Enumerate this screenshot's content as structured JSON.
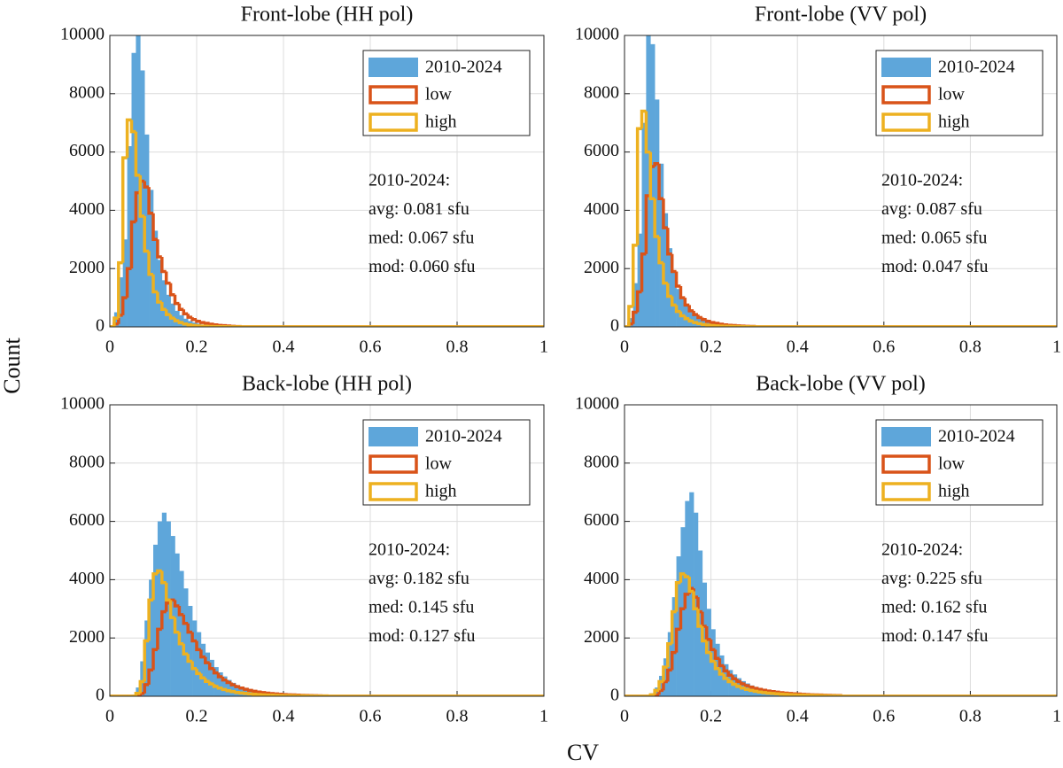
{
  "xlabel": "CV",
  "ylabel": "Count",
  "chart_data": [
    {
      "type": "histogram",
      "title": "Front-lobe (HH pol)",
      "xlim": [
        0,
        1
      ],
      "xticks": [
        0,
        0.2,
        0.4,
        0.6,
        0.8,
        1
      ],
      "ylim": [
        0,
        10000
      ],
      "yticks": [
        0,
        2000,
        4000,
        6000,
        8000,
        10000
      ],
      "grid": true,
      "legend": "upper right",
      "annotations": [
        "2010-2024:",
        "avg: 0.081 sfu",
        "med: 0.067 sfu",
        "mod: 0.060 sfu"
      ],
      "bins": [
        0,
        0.01,
        0.02,
        0.03,
        0.04,
        0.05,
        0.06,
        0.07,
        0.08,
        0.09,
        0.1,
        0.11,
        0.12,
        0.13,
        0.14,
        0.15,
        0.16,
        0.17,
        0.18,
        0.19,
        0.2,
        0.21,
        0.22,
        0.23,
        0.24,
        0.25,
        0.26,
        0.27,
        0.28,
        0.29,
        0.3
      ],
      "series": [
        {
          "name": "2010-2024",
          "color": "#5ea6da",
          "style": "filled",
          "values": [
            0,
            500,
            1700,
            3000,
            6200,
            9400,
            10300,
            8800,
            6600,
            4700,
            3300,
            2300,
            1600,
            1100,
            800,
            550,
            400,
            280,
            200,
            150,
            110,
            80,
            60,
            40,
            30,
            20,
            15,
            10,
            8,
            5
          ]
        },
        {
          "name": "low",
          "color": "#d95319",
          "style": "stairs",
          "values": [
            0,
            100,
            400,
            1000,
            2000,
            3600,
            4600,
            5000,
            4800,
            3900,
            3000,
            2400,
            1900,
            1500,
            1100,
            800,
            600,
            450,
            330,
            250,
            190,
            150,
            120,
            90,
            70,
            50,
            40,
            30,
            20,
            10
          ]
        },
        {
          "name": "high",
          "color": "#edb120",
          "style": "stairs",
          "values": [
            0,
            300,
            2200,
            5800,
            7100,
            6700,
            5200,
            3800,
            2600,
            1800,
            1200,
            850,
            600,
            420,
            300,
            210,
            150,
            100,
            70,
            50,
            35,
            25,
            20,
            15,
            10,
            8,
            6,
            4,
            3,
            2
          ]
        }
      ]
    },
    {
      "type": "histogram",
      "title": "Front-lobe (VV pol)",
      "xlim": [
        0,
        1
      ],
      "xticks": [
        0,
        0.2,
        0.4,
        0.6,
        0.8,
        1
      ],
      "ylim": [
        0,
        10000
      ],
      "yticks": [
        0,
        2000,
        4000,
        6000,
        8000,
        10000
      ],
      "grid": true,
      "legend": "upper right",
      "annotations": [
        "2010-2024:",
        "avg: 0.087 sfu",
        "med: 0.065 sfu",
        "mod: 0.047 sfu"
      ],
      "bins": [
        0,
        0.01,
        0.02,
        0.03,
        0.04,
        0.05,
        0.06,
        0.07,
        0.08,
        0.09,
        0.1,
        0.11,
        0.12,
        0.13,
        0.14,
        0.15,
        0.16,
        0.17,
        0.18,
        0.19,
        0.2,
        0.21,
        0.22,
        0.23,
        0.24,
        0.25,
        0.26,
        0.27,
        0.28,
        0.29,
        0.3
      ],
      "series": [
        {
          "name": "2010-2024",
          "color": "#5ea6da",
          "style": "filled",
          "values": [
            0,
            300,
            1500,
            3200,
            7000,
            10300,
            9700,
            7800,
            5600,
            3900,
            2700,
            1900,
            1300,
            950,
            700,
            500,
            380,
            280,
            210,
            160,
            120,
            90,
            70,
            55,
            45,
            35,
            25,
            20,
            15,
            10
          ]
        },
        {
          "name": "low",
          "color": "#d95319",
          "style": "stairs",
          "values": [
            0,
            100,
            500,
            1200,
            2500,
            4500,
            5500,
            5600,
            4400,
            3400,
            2500,
            1900,
            1400,
            1000,
            750,
            550,
            420,
            320,
            250,
            190,
            150,
            120,
            90,
            70,
            55,
            45,
            35,
            25,
            20,
            15
          ]
        },
        {
          "name": "high",
          "color": "#edb120",
          "style": "stairs",
          "values": [
            0,
            700,
            2800,
            6800,
            7400,
            6000,
            4400,
            3100,
            2200,
            1500,
            1050,
            750,
            530,
            380,
            280,
            200,
            150,
            110,
            80,
            60,
            45,
            35,
            28,
            22,
            18,
            14,
            10,
            8,
            6,
            4
          ]
        }
      ]
    },
    {
      "type": "histogram",
      "title": "Back-lobe (HH pol)",
      "xlim": [
        0,
        1
      ],
      "xticks": [
        0,
        0.2,
        0.4,
        0.6,
        0.8,
        1
      ],
      "ylim": [
        0,
        10000
      ],
      "yticks": [
        0,
        2000,
        4000,
        6000,
        8000,
        10000
      ],
      "grid": true,
      "legend": "upper right",
      "annotations": [
        "2010-2024:",
        "avg: 0.182 sfu",
        "med: 0.145 sfu",
        "mod: 0.127 sfu"
      ],
      "bins": [
        0,
        0.01,
        0.02,
        0.03,
        0.04,
        0.05,
        0.06,
        0.07,
        0.08,
        0.09,
        0.1,
        0.11,
        0.12,
        0.13,
        0.14,
        0.15,
        0.16,
        0.17,
        0.18,
        0.19,
        0.2,
        0.21,
        0.22,
        0.23,
        0.24,
        0.25,
        0.26,
        0.27,
        0.28,
        0.29,
        0.3,
        0.31,
        0.32,
        0.33,
        0.34,
        0.35,
        0.36,
        0.37,
        0.38,
        0.39,
        0.4,
        0.41,
        0.42,
        0.43,
        0.44,
        0.45,
        0.46,
        0.47,
        0.48,
        0.49,
        0.5
      ],
      "series": [
        {
          "name": "2010-2024",
          "color": "#5ea6da",
          "style": "filled",
          "values": [
            0,
            0,
            0,
            0,
            0,
            50,
            300,
            1200,
            2600,
            4000,
            5200,
            6000,
            6300,
            6000,
            5500,
            4900,
            4300,
            3700,
            3100,
            2600,
            2200,
            1800,
            1500,
            1250,
            1000,
            820,
            680,
            560,
            460,
            380,
            320,
            270,
            230,
            190,
            160,
            140,
            120,
            100,
            85,
            75,
            65,
            55,
            48,
            42,
            36,
            30,
            26,
            22,
            18,
            15
          ]
        },
        {
          "name": "low",
          "color": "#d95319",
          "style": "stairs",
          "values": [
            0,
            0,
            0,
            0,
            0,
            0,
            0,
            100,
            400,
            900,
            1600,
            2300,
            2900,
            3200,
            3300,
            3100,
            2800,
            2500,
            2200,
            1900,
            1600,
            1350,
            1150,
            950,
            800,
            670,
            560,
            470,
            390,
            330,
            280,
            240,
            200,
            170,
            145,
            125,
            105,
            90,
            78,
            68,
            58,
            50,
            44,
            38,
            32,
            28,
            24,
            20,
            16,
            13
          ]
        },
        {
          "name": "high",
          "color": "#edb120",
          "style": "stairs",
          "values": [
            0,
            0,
            0,
            0,
            0,
            0,
            100,
            500,
            1900,
            3300,
            4200,
            4300,
            3900,
            3300,
            2700,
            2200,
            1800,
            1450,
            1200,
            950,
            780,
            630,
            510,
            420,
            340,
            280,
            230,
            190,
            160,
            130,
            110,
            95,
            80,
            68,
            58,
            50,
            43,
            37,
            32,
            28,
            24,
            21,
            18,
            16,
            14,
            12,
            10,
            8,
            7,
            6
          ]
        }
      ]
    },
    {
      "type": "histogram",
      "title": "Back-lobe (VV pol)",
      "xlim": [
        0,
        1
      ],
      "xticks": [
        0,
        0.2,
        0.4,
        0.6,
        0.8,
        1
      ],
      "ylim": [
        0,
        10000
      ],
      "yticks": [
        0,
        2000,
        4000,
        6000,
        8000,
        10000
      ],
      "grid": true,
      "legend": "upper right",
      "annotations": [
        "2010-2024:",
        "avg: 0.225 sfu",
        "med: 0.162 sfu",
        "mod: 0.147 sfu"
      ],
      "bins": [
        0,
        0.01,
        0.02,
        0.03,
        0.04,
        0.05,
        0.06,
        0.07,
        0.08,
        0.09,
        0.1,
        0.11,
        0.12,
        0.13,
        0.14,
        0.15,
        0.16,
        0.17,
        0.18,
        0.19,
        0.2,
        0.21,
        0.22,
        0.23,
        0.24,
        0.25,
        0.26,
        0.27,
        0.28,
        0.29,
        0.3,
        0.31,
        0.32,
        0.33,
        0.34,
        0.35,
        0.36,
        0.37,
        0.38,
        0.39,
        0.4,
        0.41,
        0.42,
        0.43,
        0.44,
        0.45,
        0.46,
        0.47,
        0.48,
        0.49,
        0.5
      ],
      "series": [
        {
          "name": "2010-2024",
          "color": "#5ea6da",
          "style": "filled",
          "values": [
            0,
            0,
            0,
            0,
            0,
            0,
            100,
            300,
            700,
            1300,
            2200,
            3400,
            4800,
            5800,
            6700,
            7000,
            6300,
            5000,
            3900,
            3000,
            2300,
            1800,
            1400,
            1100,
            900,
            750,
            620,
            520,
            440,
            370,
            320,
            270,
            230,
            200,
            175,
            150,
            130,
            115,
            100,
            88,
            78,
            70,
            62,
            55,
            48,
            42,
            38,
            34,
            30,
            26
          ]
        },
        {
          "name": "low",
          "color": "#d95319",
          "style": "stairs",
          "values": [
            0,
            0,
            0,
            0,
            0,
            0,
            0,
            50,
            200,
            500,
            900,
            1500,
            2300,
            3000,
            3500,
            3700,
            3400,
            2900,
            2400,
            1950,
            1600,
            1300,
            1050,
            870,
            720,
            600,
            500,
            420,
            360,
            310,
            270,
            235,
            205,
            180,
            160,
            140,
            122,
            108,
            95,
            85,
            75,
            66,
            58,
            51,
            45,
            40,
            35,
            31,
            27,
            24
          ]
        },
        {
          "name": "high",
          "color": "#edb120",
          "style": "stairs",
          "values": [
            0,
            0,
            0,
            0,
            0,
            0,
            50,
            200,
            500,
            1000,
            1800,
            2900,
            3900,
            4200,
            4100,
            3600,
            3000,
            2400,
            1900,
            1500,
            1200,
            950,
            760,
            610,
            500,
            410,
            340,
            280,
            235,
            200,
            170,
            145,
            125,
            108,
            94,
            82,
            72,
            63,
            55,
            48,
            42,
            37,
            33,
            29,
            25,
            22,
            19,
            17,
            15,
            13
          ]
        }
      ]
    }
  ]
}
